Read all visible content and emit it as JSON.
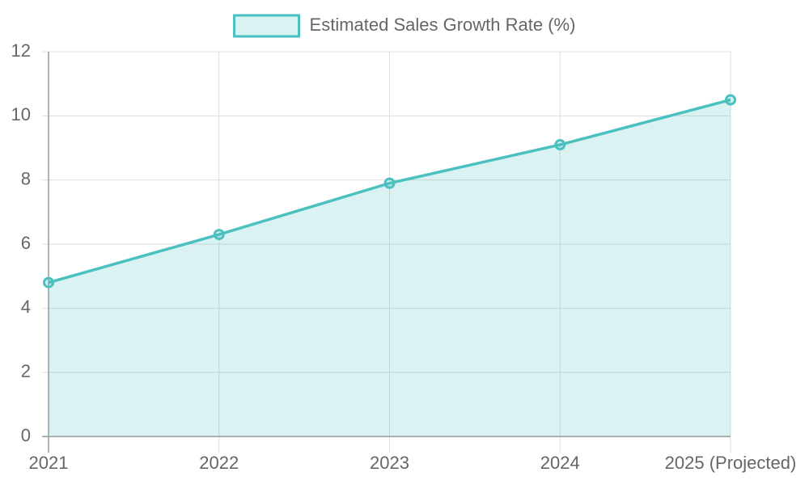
{
  "chart_data": {
    "type": "line",
    "categories": [
      "2021",
      "2022",
      "2023",
      "2024",
      "2025 (Projected)"
    ],
    "series": [
      {
        "name": "Estimated Sales Growth Rate (%)",
        "color": "#4bc0c0",
        "fill_color": "rgba(75,192,192,0.2)",
        "fill": true,
        "values": [
          4.8,
          6.3,
          7.9,
          9.1,
          10.5
        ]
      }
    ],
    "ylim": [
      0,
      12
    ],
    "yticks": [
      0,
      2,
      4,
      6,
      8,
      10,
      12
    ],
    "grid": true,
    "legend": "top"
  }
}
